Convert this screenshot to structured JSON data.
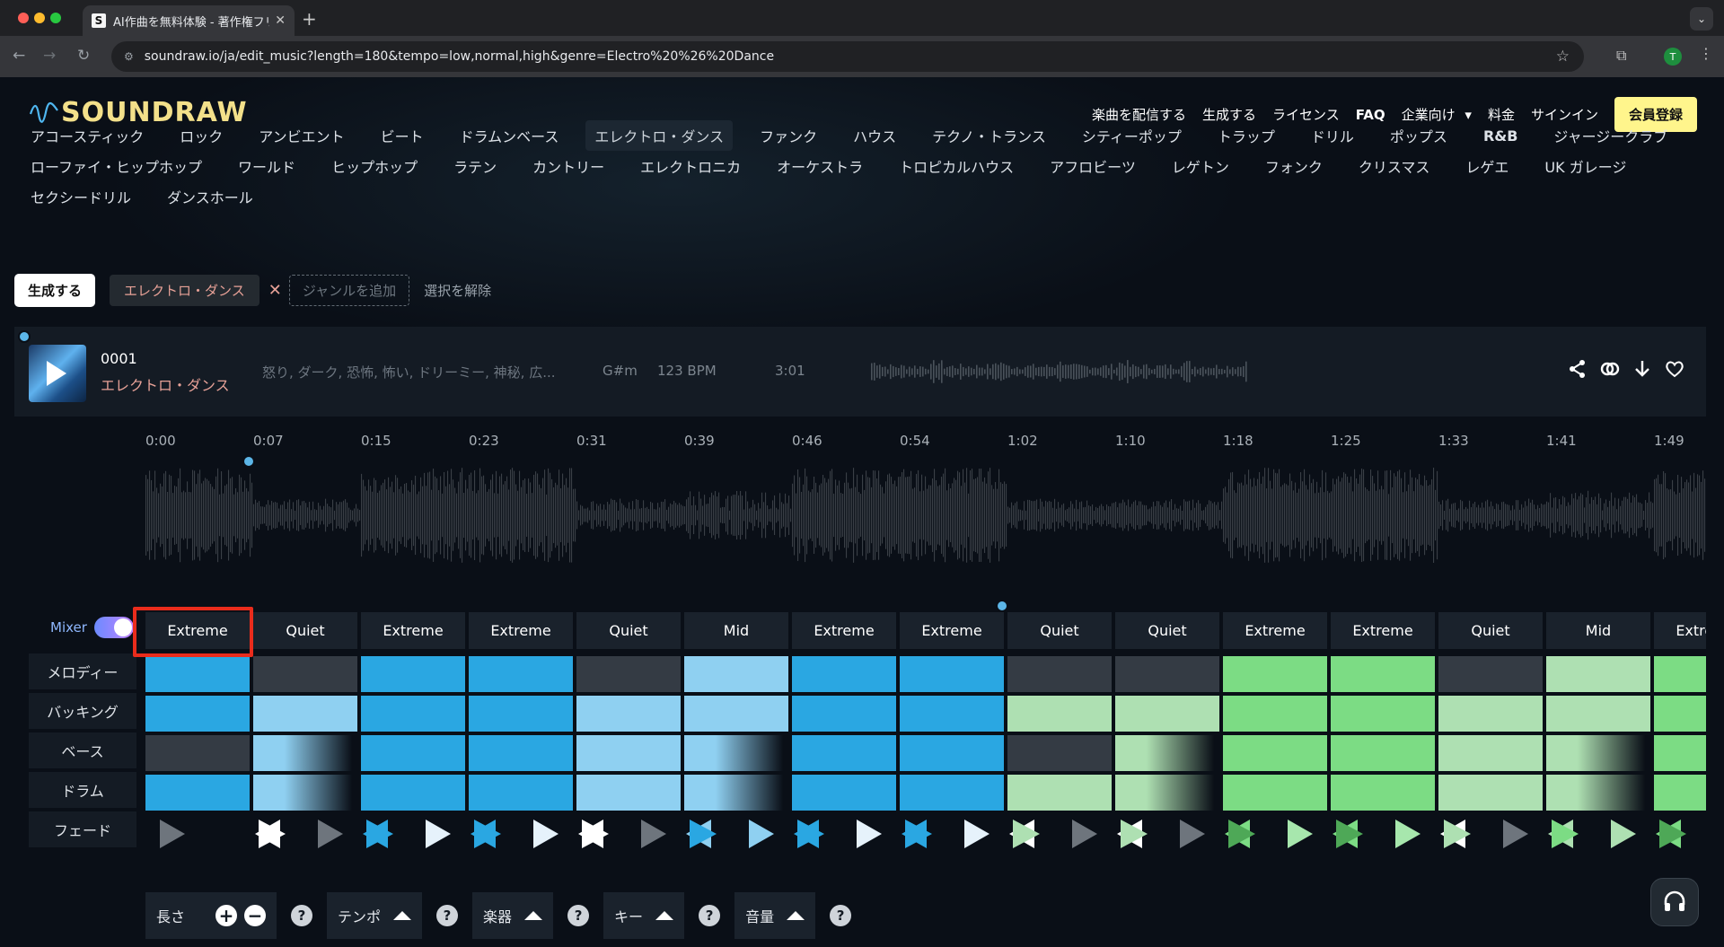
{
  "browser": {
    "tab_title": "AI作曲を無料体験 - 著作権フリー...",
    "url": "soundraw.io/ja/edit_music?length=180&tempo=low,normal,high&genre=Electro%20%26%20Dance",
    "profile_initial": "T"
  },
  "header": {
    "logo_text": "SOUNDRAW",
    "nav": [
      "楽曲を配信する",
      "生成する",
      "ライセンス",
      "FAQ",
      "企業向け",
      "料金",
      "サインイン"
    ],
    "dropdown_caret": "▾",
    "signup_label": "会員登録"
  },
  "genres": {
    "rows": [
      [
        "アコースティック",
        "ロック",
        "アンビエント",
        "ビート",
        "ドラムンベース",
        "エレクトロ・ダンス",
        "ファンク",
        "ハウス",
        "テクノ・トランス",
        "シティーポップ",
        "トラップ",
        "ドリル",
        "ポップス",
        "R&B",
        "ジャージークラブ"
      ],
      [
        "ローファイ・ヒップホップ",
        "ワールド",
        "ヒップホップ",
        "ラテン",
        "カントリー",
        "エレクトロニカ",
        "オーケストラ",
        "トロピカルハウス",
        "アフロビーツ",
        "レゲトン",
        "フォンク",
        "クリスマス",
        "レゲエ",
        "UK ガレージ"
      ],
      [
        "セクシードリル",
        "ダンスホール"
      ]
    ],
    "selected": "エレクトロ・ダンス"
  },
  "generate_bar": {
    "generate_label": "生成する",
    "selected_chip": "エレクトロ・ダンス",
    "remove_icon": "✕",
    "add_genre_placeholder": "ジャンルを追加",
    "clear_label": "選択を解除"
  },
  "track": {
    "number": "0001",
    "genre": "エレクトロ・ダンス",
    "moods": "怒り, ダーク, 恐怖, 怖い, ドリーミー, 神秘, 広...",
    "key": "G#m",
    "bpm": "123 BPM",
    "length": "3:01"
  },
  "timeline": [
    "0:00",
    "0:07",
    "0:15",
    "0:23",
    "0:31",
    "0:39",
    "0:46",
    "0:54",
    "1:02",
    "1:10",
    "1:18",
    "1:25",
    "1:33",
    "1:41",
    "1:49"
  ],
  "mixer": {
    "label": "Mixer",
    "enabled": true,
    "row_labels": [
      "メロディー",
      "バッキング",
      "ベース",
      "ドラム",
      "フェード"
    ],
    "sections": [
      {
        "energy": "Extreme",
        "melody": 3,
        "backing": 3,
        "bass": 0,
        "drums": 3,
        "hue": "blue"
      },
      {
        "energy": "Quiet",
        "melody": 0,
        "backing": 2,
        "bass": "fade",
        "drums": "fade",
        "hue": "blue"
      },
      {
        "energy": "Extreme",
        "melody": 3,
        "backing": 3,
        "bass": 3,
        "drums": 3,
        "hue": "blue"
      },
      {
        "energy": "Extreme",
        "melody": 3,
        "backing": 3,
        "bass": 3,
        "drums": 3,
        "hue": "blue"
      },
      {
        "energy": "Quiet",
        "melody": 0,
        "backing": 2,
        "bass": 2,
        "drums": 2,
        "hue": "blue"
      },
      {
        "energy": "Mid",
        "melody": 2,
        "backing": 2,
        "bass": "fade",
        "drums": "fade",
        "hue": "blue"
      },
      {
        "energy": "Extreme",
        "melody": 3,
        "backing": 3,
        "bass": 3,
        "drums": 3,
        "hue": "blue"
      },
      {
        "energy": "Extreme",
        "melody": 3,
        "backing": 3,
        "bass": 3,
        "drums": 3,
        "hue": "blue"
      },
      {
        "energy": "Quiet",
        "melody": 0,
        "backing": 2,
        "bass": 0,
        "drums": 2,
        "hue": "green"
      },
      {
        "energy": "Quiet",
        "melody": 0,
        "backing": 2,
        "bass": "fade",
        "drums": "fade",
        "hue": "green"
      },
      {
        "energy": "Extreme",
        "melody": 3,
        "backing": 3,
        "bass": 3,
        "drums": 3,
        "hue": "green"
      },
      {
        "energy": "Extreme",
        "melody": 3,
        "backing": 3,
        "bass": 3,
        "drums": 3,
        "hue": "green"
      },
      {
        "energy": "Quiet",
        "melody": 0,
        "backing": 2,
        "bass": 2,
        "drums": 2,
        "hue": "green"
      },
      {
        "energy": "Mid",
        "melody": 2,
        "backing": 2,
        "bass": "fade",
        "drums": "fade",
        "hue": "green"
      },
      {
        "energy": "Extreme",
        "melody": 3,
        "backing": 3,
        "bass": 3,
        "drums": 3,
        "hue": "green"
      }
    ]
  },
  "controls": [
    {
      "label": "長さ",
      "type": "plusminus"
    },
    {
      "label": "テンポ",
      "type": "up"
    },
    {
      "label": "楽器",
      "type": "up"
    },
    {
      "label": "キー",
      "type": "up"
    },
    {
      "label": "音量",
      "type": "up"
    }
  ],
  "help_icon": "?",
  "colors": {
    "blue_full": "#2aa7e2",
    "blue_light": "#8fd0f1",
    "green_full": "#7cdc84",
    "green_light": "#aee0b2",
    "empty": "#343b44",
    "highlight": "#ea2c1c",
    "logo": "#f3e08a",
    "signup": "#fff58c"
  }
}
